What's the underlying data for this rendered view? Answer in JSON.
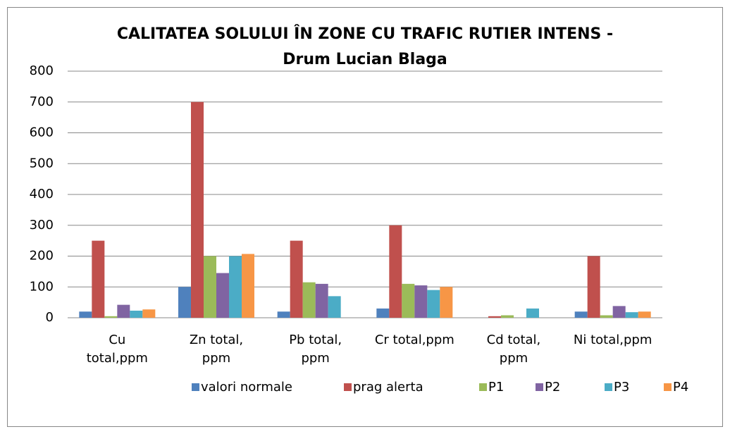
{
  "chart_data": {
    "type": "bar",
    "title": "CALITATEA SOLULUI ÎN ZONE CU TRAFIC RUTIER INTENS -\nDrum Lucian Blaga",
    "categories": [
      "Cu\ntotal,ppm",
      "Zn total,\nppm",
      "Pb total,\nppm",
      "Cr total,ppm",
      "Cd total,\nppm",
      "Ni total,ppm"
    ],
    "series": [
      {
        "name": "valori normale",
        "color": "#4f81bd",
        "values": [
          20,
          100,
          20,
          30,
          null,
          20
        ]
      },
      {
        "name": "prag alerta",
        "color": "#c0504d",
        "values": [
          250,
          700,
          250,
          300,
          5,
          200
        ]
      },
      {
        "name": "P1",
        "color": "#9bbb59",
        "values": [
          5,
          200,
          115,
          110,
          8,
          8
        ]
      },
      {
        "name": "P2",
        "color": "#8064a2",
        "values": [
          42,
          145,
          110,
          105,
          null,
          38
        ]
      },
      {
        "name": "P3",
        "color": "#4bacc6",
        "values": [
          23,
          200,
          70,
          90,
          30,
          18
        ]
      },
      {
        "name": "P4",
        "color": "#f79646",
        "values": [
          27,
          207,
          null,
          100,
          null,
          20
        ]
      }
    ],
    "ylim": [
      0,
      800
    ],
    "yticks": [
      0,
      100,
      200,
      300,
      400,
      500,
      600,
      700,
      800
    ],
    "grid": true,
    "legend": "bottom"
  }
}
